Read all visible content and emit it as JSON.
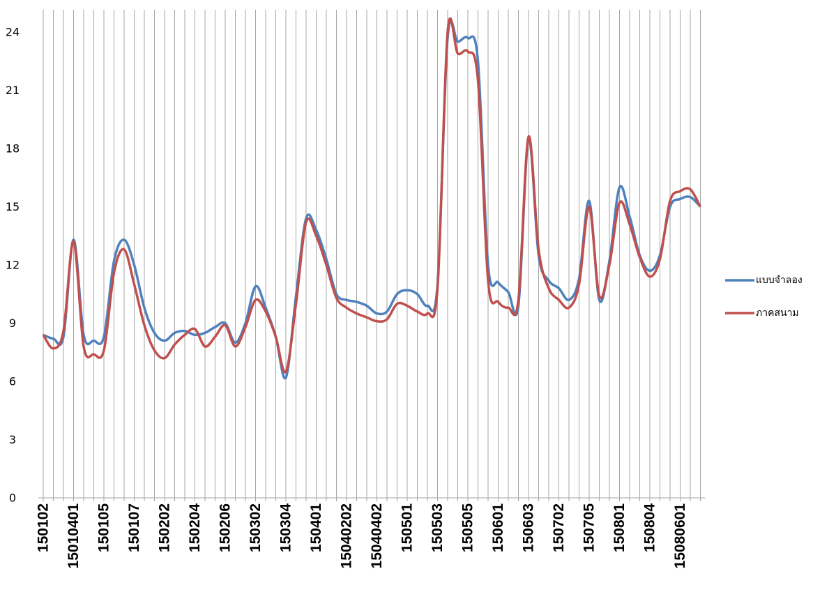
{
  "chart_data": {
    "type": "line",
    "categories": [
      "150102",
      null,
      null,
      "15010401",
      null,
      null,
      "150105",
      null,
      null,
      "150107",
      null,
      null,
      "150202",
      null,
      null,
      "150204",
      null,
      null,
      "150206",
      null,
      null,
      "150302",
      null,
      null,
      "150304",
      null,
      null,
      "150401",
      null,
      null,
      "15040202",
      null,
      null,
      "15040402",
      null,
      null,
      "150501",
      null,
      null,
      "150503",
      null,
      null,
      "150505",
      null,
      null,
      "150601",
      null,
      null,
      "150603",
      null,
      null,
      "150702",
      null,
      null,
      "150705",
      null,
      null,
      "150801",
      null,
      null,
      "150804",
      null,
      null,
      "15080601",
      null,
      null
    ],
    "series": [
      {
        "name": "แบบจำลอง",
        "color": "#4f81bd",
        "values": [
          8.4,
          8.2,
          8.3,
          13.3,
          8.4,
          8.1,
          8.3,
          12.2,
          13.3,
          12.0,
          9.8,
          8.5,
          8.1,
          8.5,
          8.6,
          8.4,
          8.5,
          8.8,
          9.0,
          8.0,
          9.0,
          10.9,
          9.8,
          8.3,
          6.2,
          10.4,
          14.4,
          13.8,
          12.3,
          10.5,
          10.2,
          10.1,
          9.9,
          9.5,
          9.6,
          10.5,
          10.7,
          10.5,
          9.9,
          11.0,
          23.7,
          23.5,
          23.7,
          22.5,
          12.0,
          11.1,
          10.6,
          9.9,
          18.5,
          12.5,
          11.2,
          10.8,
          10.2,
          11.3,
          15.3,
          10.2,
          12.2,
          16.0,
          14.5,
          12.5,
          11.7,
          12.5,
          15.0,
          15.4,
          15.5,
          15.0
        ]
      },
      {
        "name": "ภาคสนาม",
        "color": "#c0504d",
        "values": [
          8.4,
          7.7,
          8.6,
          13.2,
          7.8,
          7.4,
          7.6,
          11.6,
          12.8,
          11.0,
          8.9,
          7.6,
          7.2,
          7.9,
          8.4,
          8.7,
          7.8,
          8.3,
          8.9,
          7.8,
          8.8,
          10.2,
          9.6,
          8.3,
          6.5,
          10.0,
          14.2,
          13.5,
          12.0,
          10.3,
          9.8,
          9.5,
          9.3,
          9.1,
          9.2,
          10.0,
          9.9,
          9.6,
          9.5,
          10.8,
          24.0,
          22.9,
          23.0,
          21.5,
          11.2,
          10.1,
          9.8,
          10.2,
          18.6,
          12.8,
          10.8,
          10.2,
          9.8,
          11.0,
          15.0,
          10.4,
          12.0,
          15.2,
          14.1,
          12.4,
          11.4,
          12.3,
          15.3,
          15.8,
          15.9,
          15.0
        ]
      }
    ],
    "ylim": [
      0,
      24
    ],
    "yticks": [
      0,
      3,
      6,
      9,
      12,
      15,
      18,
      21,
      24
    ],
    "grid": true,
    "smooth": true,
    "legend": "right"
  }
}
